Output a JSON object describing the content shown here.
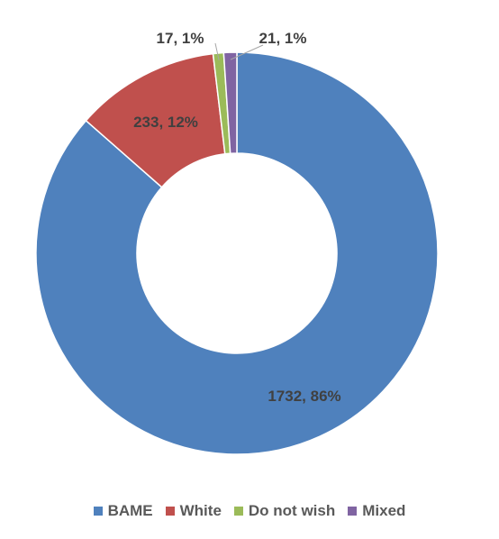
{
  "chart_data": {
    "type": "pie",
    "subtype": "donut",
    "title": "",
    "categories": [
      "BAME",
      "White",
      "Do not wish",
      "Mixed"
    ],
    "values": [
      1732,
      233,
      17,
      21
    ],
    "percents": [
      "86%",
      "12%",
      "1%",
      "1%"
    ],
    "data_labels": [
      "1732, 86%",
      "233, 12%",
      "17, 1%",
      "21, 1%"
    ],
    "colors": [
      "#4F81BD",
      "#C0504D",
      "#9BBB59",
      "#8064A2"
    ],
    "legend_position": "bottom"
  },
  "legend": {
    "items": [
      {
        "label": "BAME",
        "color": "#4F81BD"
      },
      {
        "label": "White",
        "color": "#C0504D"
      },
      {
        "label": "Do not wish",
        "color": "#9BBB59"
      },
      {
        "label": "Mixed",
        "color": "#8064A2"
      }
    ]
  }
}
